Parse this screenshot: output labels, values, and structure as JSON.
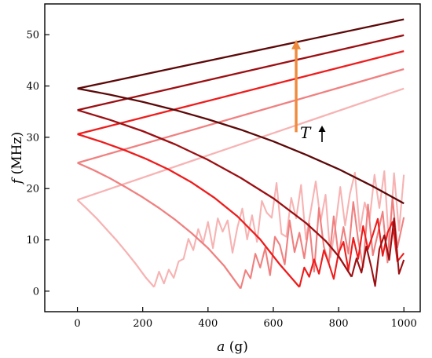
{
  "chart_data": {
    "type": "line",
    "xlabel_var": "a",
    "xlabel_unit": "(g)",
    "ylabel_var": "f",
    "ylabel_unit": "(MHz)",
    "xlim": [
      -100,
      1050
    ],
    "ylim": [
      -4,
      56
    ],
    "xticks": [
      0,
      200,
      400,
      600,
      800,
      1000
    ],
    "yticks": [
      0,
      10,
      20,
      30,
      40,
      50
    ],
    "grid": false,
    "legend": "none",
    "annotation": {
      "text": "T",
      "arrow": "up"
    },
    "trend_arrow": {
      "color": "#f08a3c",
      "x": 670,
      "y_from": 31,
      "y_to": 49
    },
    "series": [
      {
        "color": "#f7b3b3",
        "upper": {
          "x": [
            0,
            1000
          ],
          "y": [
            17.8,
            39.5
          ]
        },
        "lower": {
          "x": [
            0,
            30,
            60,
            90,
            120,
            150,
            180,
            210,
            235
          ],
          "y": [
            17.8,
            16.0,
            14.1,
            12.0,
            9.9,
            7.6,
            5.2,
            2.6,
            0.8
          ]
        },
        "noise": {
          "x": [
            235,
            250,
            265,
            280,
            295,
            310,
            325,
            340,
            355,
            370,
            385,
            400,
            415,
            430,
            445,
            460,
            475,
            490,
            505,
            520,
            535,
            550,
            565,
            580,
            595,
            610,
            625,
            640,
            655,
            670,
            685,
            700,
            715,
            730,
            745,
            760,
            775,
            790,
            805,
            820,
            835,
            850,
            865,
            880,
            895,
            910,
            925,
            940,
            955,
            970,
            985,
            1000
          ],
          "y": [
            0.8,
            3.8,
            1.5,
            4.2,
            2.6,
            5.8,
            6.3,
            10.2,
            8.0,
            12.1,
            9.4,
            13.5,
            8.4,
            14.2,
            11.6,
            13.8,
            7.5,
            12.4,
            16.1,
            10.1,
            14.8,
            9.6,
            17.6,
            15.3,
            14.3,
            21.1,
            11.2,
            10.6,
            18.2,
            14.2,
            20.7,
            10.1,
            15.8,
            21.4,
            13.6,
            18.8,
            6.6,
            12.4,
            20.3,
            12.8,
            19.0,
            23.1,
            11.7,
            17.3,
            14.0,
            22.7,
            16.2,
            23.4,
            8.5,
            23.0,
            11.8,
            22.7
          ]
        }
      },
      {
        "color": "#f08080",
        "upper": {
          "x": [
            0,
            1000
          ],
          "y": [
            25.0,
            43.3
          ]
        },
        "lower": {
          "x": [
            0,
            50,
            100,
            150,
            200,
            250,
            300,
            350,
            400,
            450,
            500
          ],
          "y": [
            25.0,
            23.6,
            22.0,
            20.2,
            18.3,
            16.2,
            13.9,
            11.3,
            8.4,
            4.9,
            0.5
          ]
        },
        "noise": {
          "x": [
            500,
            515,
            530,
            545,
            560,
            575,
            590,
            605,
            620,
            635,
            650,
            665,
            680,
            695,
            710,
            725,
            740,
            755,
            770,
            785,
            800,
            815,
            830,
            845,
            860,
            875,
            890,
            905,
            920,
            935,
            950,
            965,
            980,
            1000
          ],
          "y": [
            0.5,
            4.1,
            2.5,
            7.3,
            4.6,
            8.4,
            3.1,
            10.6,
            9.0,
            5.2,
            13.8,
            7.6,
            11.4,
            6.4,
            13.2,
            3.8,
            16.2,
            8.6,
            5.4,
            14.6,
            6.8,
            12.5,
            7.3,
            17.4,
            10.0,
            4.7,
            16.9,
            7.0,
            11.2,
            15.5,
            5.6,
            18.2,
            8.5,
            14.4
          ]
        }
      },
      {
        "color": "#ee1c1c",
        "upper": {
          "x": [
            0,
            1000
          ],
          "y": [
            30.6,
            46.8
          ]
        },
        "lower": {
          "x": [
            0,
            70,
            140,
            210,
            280,
            350,
            420,
            490,
            560,
            620,
            680
          ],
          "y": [
            30.6,
            29.2,
            27.6,
            25.8,
            23.7,
            21.2,
            18.2,
            14.6,
            10.1,
            5.2,
            0.8
          ]
        },
        "noise": {
          "x": [
            680,
            695,
            710,
            725,
            740,
            755,
            770,
            785,
            800,
            815,
            830,
            845,
            860,
            875,
            890,
            905,
            920,
            935,
            950,
            965,
            980,
            1000
          ],
          "y": [
            0.8,
            4.6,
            2.8,
            6.2,
            3.4,
            8.0,
            5.4,
            2.4,
            7.5,
            9.6,
            4.1,
            10.4,
            6.3,
            12.7,
            8.2,
            11.0,
            14.1,
            6.9,
            11.4,
            13.5,
            5.8,
            7.4
          ]
        }
      },
      {
        "color": "#9b0f12",
        "upper": {
          "x": [
            0,
            1000
          ],
          "y": [
            35.3,
            49.9
          ]
        },
        "lower": {
          "x": [
            0,
            100,
            200,
            300,
            400,
            500,
            600,
            700,
            760,
            800,
            840
          ],
          "y": [
            35.3,
            33.4,
            31.2,
            28.6,
            25.6,
            22.1,
            18.1,
            13.3,
            9.8,
            6.8,
            2.8
          ]
        },
        "noise": {
          "x": [
            840,
            855,
            870,
            885,
            900,
            912,
            925,
            940,
            955,
            970,
            985,
            1000
          ],
          "y": [
            2.8,
            6.4,
            3.6,
            8.7,
            4.7,
            1.0,
            8.2,
            10.9,
            6.1,
            14.2,
            3.4,
            6.1
          ]
        }
      },
      {
        "color": "#5c0808",
        "upper": {
          "x": [
            0,
            1000
          ],
          "y": [
            39.5,
            53.0
          ]
        },
        "lower": {
          "x": [
            0,
            100,
            200,
            300,
            400,
            500,
            600,
            700,
            800,
            900,
            1000
          ],
          "y": [
            39.5,
            38.3,
            36.9,
            35.3,
            33.5,
            31.5,
            29.2,
            26.6,
            23.8,
            20.6,
            17.1
          ]
        },
        "noise": {
          "x": [],
          "y": []
        }
      }
    ]
  }
}
